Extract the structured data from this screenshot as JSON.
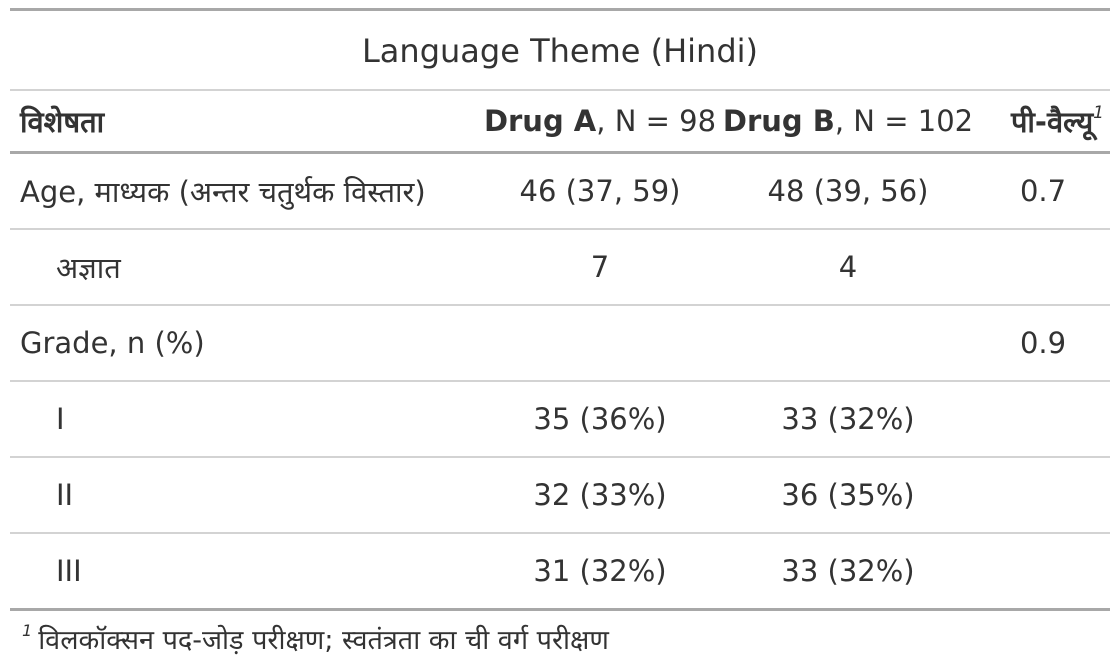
{
  "title": "Language Theme (Hindi)",
  "header": {
    "characteristic": "विशेषता",
    "drug_a_name": "Drug A",
    "drug_a_n": ", N = 98",
    "drug_b_name": "Drug B",
    "drug_b_n": ", N = 102",
    "p_value": "पी-वैल्यू",
    "p_value_mark": "1"
  },
  "rows": [
    {
      "label": "Age, माध्यक (अन्तर चतुर्थक विस्तार)",
      "drug_a": "46 (37, 59)",
      "drug_b": "48 (39, 56)",
      "p": "0.7"
    },
    {
      "label": "अज्ञात",
      "drug_a": "7",
      "drug_b": "4",
      "p": ""
    },
    {
      "label": "Grade, n (%)",
      "drug_a": "",
      "drug_b": "",
      "p": "0.9"
    },
    {
      "label": "I",
      "drug_a": "35 (36%)",
      "drug_b": "33 (32%)",
      "p": ""
    },
    {
      "label": "II",
      "drug_a": "32 (33%)",
      "drug_b": "36 (35%)",
      "p": ""
    },
    {
      "label": "III",
      "drug_a": "31 (32%)",
      "drug_b": "33 (32%)",
      "p": ""
    }
  ],
  "footnote": {
    "mark": "1",
    "text": "विलकॉक्सन पद-जोड़ परीक्षण; स्वतंत्रता का ची वर्ग परीक्षण"
  }
}
